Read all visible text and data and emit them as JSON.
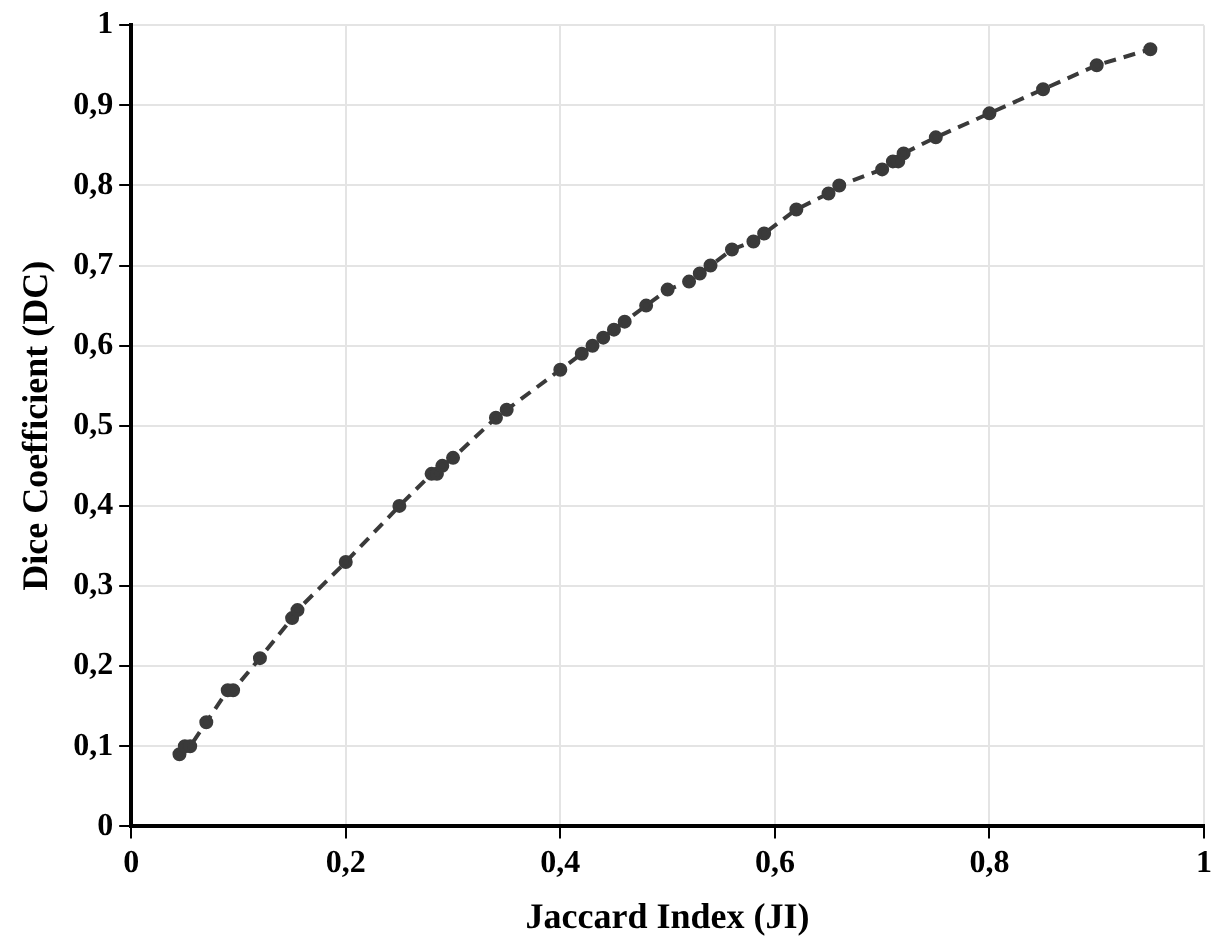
{
  "chart_data": {
    "type": "line",
    "xlabel": "Jaccard Index (JI)",
    "ylabel": "Dice Coefficient (DC)",
    "x": [
      0.045,
      0.05,
      0.055,
      0.07,
      0.09,
      0.095,
      0.12,
      0.15,
      0.155,
      0.2,
      0.25,
      0.28,
      0.285,
      0.29,
      0.3,
      0.34,
      0.35,
      0.4,
      0.42,
      0.43,
      0.44,
      0.45,
      0.46,
      0.48,
      0.5,
      0.52,
      0.53,
      0.54,
      0.56,
      0.58,
      0.59,
      0.62,
      0.65,
      0.66,
      0.7,
      0.71,
      0.715,
      0.72,
      0.75,
      0.8,
      0.85,
      0.9,
      0.95
    ],
    "series": [
      {
        "color": "#3a3a3a",
        "values": [
          0.09,
          0.1,
          0.1,
          0.13,
          0.17,
          0.17,
          0.21,
          0.26,
          0.27,
          0.33,
          0.4,
          0.44,
          0.44,
          0.45,
          0.46,
          0.51,
          0.52,
          0.57,
          0.59,
          0.6,
          0.61,
          0.62,
          0.63,
          0.65,
          0.67,
          0.68,
          0.69,
          0.7,
          0.72,
          0.73,
          0.74,
          0.77,
          0.79,
          0.8,
          0.82,
          0.83,
          0.83,
          0.84,
          0.86,
          0.89,
          0.92,
          0.95,
          0.97
        ]
      }
    ],
    "xlim": [
      0,
      1
    ],
    "ylim": [
      0,
      1
    ],
    "xticks": [
      0,
      {
        "value": 0.2,
        "label": "0,2"
      },
      {
        "value": 0.4,
        "label": "0,4"
      },
      {
        "value": 0.6,
        "label": "0,6"
      },
      {
        "value": 0.8,
        "label": "0,8"
      },
      1
    ],
    "yticks": [
      0,
      {
        "value": 0.1,
        "label": "0,1"
      },
      {
        "value": 0.2,
        "label": "0,2"
      },
      {
        "value": 0.3,
        "label": "0,3"
      },
      {
        "value": 0.4,
        "label": "0,4"
      },
      {
        "value": 0.5,
        "label": "0,5"
      },
      {
        "value": 0.6,
        "label": "0,6"
      },
      {
        "value": 0.7,
        "label": "0,7"
      },
      {
        "value": 0.8,
        "label": "0,8"
      },
      {
        "value": 0.9,
        "label": "0,9"
      },
      1
    ],
    "grid": true,
    "legend": false,
    "marker": "circle",
    "line_style": "dashed"
  }
}
